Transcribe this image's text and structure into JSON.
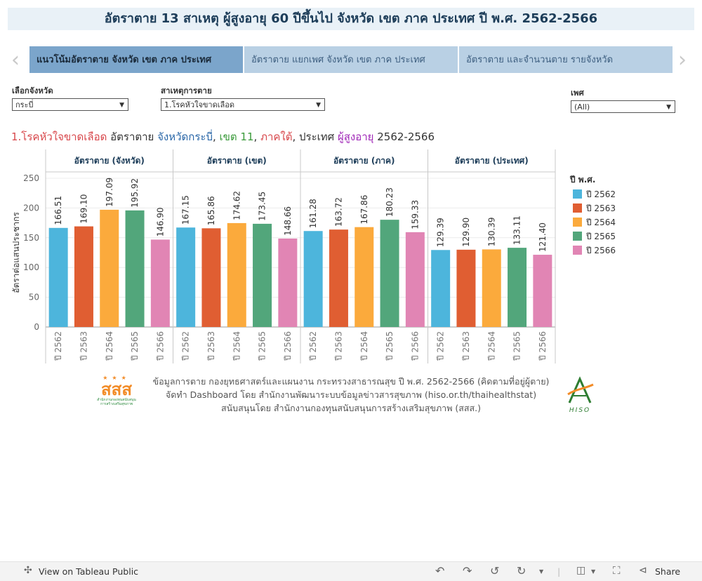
{
  "title": "อัตราตาย 13 สาเหตุ ผู้สูงอายุ 60 ปีขึ้นไป จังหวัด เขต ภาค ประเทศ ปี พ.ศ. 2562-2566",
  "nav": {
    "prev_icon": "chevron-left-icon",
    "next_icon": "chevron-right-icon"
  },
  "tabs": [
    {
      "label": "แนวโน้มอัตราตาย จังหวัด เขต ภาค ประเทศ"
    },
    {
      "label": "อัตราตาย แยกเพศ จังหวัด เขต ภาค ประเทศ"
    },
    {
      "label": "อัตราตาย และจำนวนตาย รายจังหวัด"
    }
  ],
  "filters": {
    "province": {
      "label": "เลือกจังหวัด",
      "value": "กระบี่"
    },
    "cause": {
      "label": "สาเหตุการตาย",
      "value": "1.โรคหัวใจขาดเลือด"
    },
    "sex": {
      "label": "เพศ",
      "value": "(All)"
    }
  },
  "subtitle": {
    "cause": "1.โรคหัวใจขาดเลือด",
    "t1": " อัตราตาย ",
    "province": "จังหวัดกระบี่",
    "sep1": ", ",
    "region": "เขต 11",
    "sep2": ", ",
    "zone": "ภาคใต้",
    "t2": ", ประเทศ ",
    "group": "ผู้สูงอายุ",
    "years": " 2562-2566"
  },
  "colors": {
    "cause": "#d8484c",
    "province": "#2a67a8",
    "region": "#3a9a3a",
    "zone": "#d8484c",
    "group": "#a12ab8"
  },
  "chart_data": {
    "type": "bar",
    "ylabel": "อัตราต่อแสนประชากร",
    "ylim": [
      0,
      250
    ],
    "yticks": [
      0,
      50,
      100,
      150,
      200,
      250
    ],
    "categories": [
      "ปี 2562",
      "ปี 2563",
      "ปี 2564",
      "ปี 2565",
      "ปี 2566"
    ],
    "colors": [
      "#4db5dc",
      "#e05e32",
      "#fbaa3c",
      "#52a67b",
      "#e185b4"
    ],
    "panels": [
      {
        "title": "อัตราตาย (จังหวัด)",
        "values": [
          166.51,
          169.1,
          197.09,
          195.92,
          146.9
        ]
      },
      {
        "title": "อัตราตาย (เขต)",
        "values": [
          167.15,
          165.86,
          174.62,
          173.45,
          148.66
        ]
      },
      {
        "title": "อัตราตาย (ภาค)",
        "values": [
          161.28,
          163.72,
          167.86,
          180.23,
          159.33
        ]
      },
      {
        "title": "อัตราตาย (ประเทศ)",
        "values": [
          129.39,
          129.9,
          130.39,
          133.11,
          121.4
        ]
      }
    ],
    "legend": {
      "title": "ปี พ.ศ.",
      "items": [
        "ปี 2562",
        "ปี 2563",
        "ปี 2564",
        "ปี 2565",
        "ปี 2566"
      ]
    }
  },
  "footer": {
    "line1": "ข้อมูลการตาย กองยุทธศาสตร์และแผนงาน กระทรวงสาธารณสุข ปี พ.ศ. 2562-2566 (คิดตามที่อยู่ผู้ตาย)",
    "line2": "จัดทำ Dashboard โดย สำนักงานพัฒนาระบบข้อมูลข่าวสารสุขภาพ (hiso.or.th/thaihealthstat)",
    "line3": "สนับสนุนโดย สำนักงานกองทุนสนับสนุนการสร้างเสริมสุขภาพ (สสส.)",
    "logo_left_text": "สสส",
    "logo_left_sub": "สำนักงานกองทุนสนับสนุนการสร้างเสริมสุขภาพ",
    "logo_right_text": "HISO"
  },
  "toolbar": {
    "view_label": "View on Tableau Public",
    "share_label": "Share"
  }
}
